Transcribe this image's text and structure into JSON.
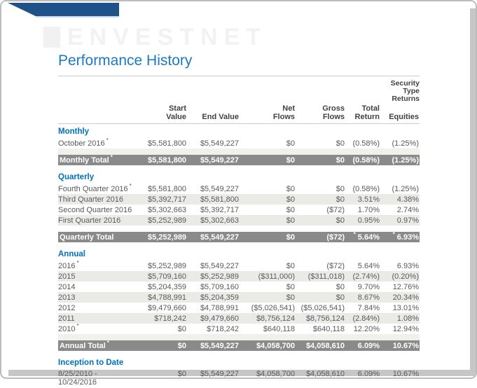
{
  "window": {
    "watermark": "ENVESTNET"
  },
  "page": {
    "title": "Performance History"
  },
  "colors": {
    "banner_navy": "#1F5288",
    "section_heading_blue": "#0071BC",
    "title_blue": "#1B7AC1",
    "total_bar_gray": "#8A8A8A",
    "row_shade": "#EAEAE7",
    "rule_gray": "#CCCCCC",
    "text_gray": "#58595B"
  },
  "table": {
    "security_header": "Security\nType\nReturns",
    "columns": [
      "Start Value",
      "End Value",
      "Net\nFlows",
      "Gross\nFlows",
      "Total\nReturn",
      "Equities"
    ],
    "sections": [
      {
        "heading": "Monthly",
        "rows": [
          {
            "label": "October 2016",
            "star": "*",
            "values": [
              "$5,581,800",
              "$5,549,227",
              "$0",
              "$0",
              "(0.58%)",
              "(1.25%)"
            ]
          }
        ],
        "spacer": true,
        "total": {
          "label": "Monthly Total",
          "star": "*",
          "values": [
            "$5,581,800",
            "$5,549,227",
            "$0",
            "$0",
            "(0.58%)",
            "(1.25%)"
          ]
        }
      },
      {
        "heading": "Quarterly",
        "rows": [
          {
            "label": "Fourth Quarter 2016",
            "star": "*",
            "values": [
              "$5,581,800",
              "$5,549,227",
              "$0",
              "$0",
              "(0.58%)",
              "(1.25%)"
            ]
          },
          {
            "label": "Third Quarter 2016",
            "star": "",
            "values": [
              "$5,392,717",
              "$5,581,800",
              "$0",
              "$0",
              "3.51%",
              "4.38%"
            ]
          },
          {
            "label": "Second Quarter 2016",
            "star": "",
            "values": [
              "$5,302,663",
              "$5,392,717",
              "$0",
              "($72)",
              "1.70%",
              "2.74%"
            ]
          },
          {
            "label": "First Quarter 2016",
            "star": "",
            "values": [
              "$5,252,989",
              "$5,302,663",
              "$0",
              "$0",
              "0.95%",
              "0.97%"
            ]
          }
        ],
        "spacer": true,
        "total": {
          "label": "Quarterly Total",
          "star": "",
          "values": [
            "$5,252,989",
            "$5,549,227",
            "$0",
            "($72)",
            "*5.64%",
            "*6.93%"
          ]
        }
      },
      {
        "heading": "Annual",
        "rows": [
          {
            "label": "2016",
            "star": "*",
            "values": [
              "$5,252,989",
              "$5,549,227",
              "$0",
              "($72)",
              "5.64%",
              "6.93%"
            ]
          },
          {
            "label": "2015",
            "star": "",
            "values": [
              "$5,709,160",
              "$5,252,989",
              "($311,000)",
              "($311,018)",
              "(2.74%)",
              "(0.20%)"
            ]
          },
          {
            "label": "2014",
            "star": "",
            "values": [
              "$5,204,359",
              "$5,709,160",
              "$0",
              "$0",
              "9.70%",
              "12.76%"
            ]
          },
          {
            "label": "2013",
            "star": "",
            "values": [
              "$4,788,991",
              "$5,204,359",
              "$0",
              "$0",
              "8.67%",
              "20.34%"
            ]
          },
          {
            "label": "2012",
            "star": "",
            "values": [
              "$9,479,660",
              "$4,788,991",
              "($5,026,541)",
              "($5,026,541)",
              "7.84%",
              "13.01%"
            ]
          },
          {
            "label": "2011",
            "star": "",
            "values": [
              "$718,242",
              "$9,479,660",
              "$8,756,124",
              "$8,756,124",
              "(2.84%)",
              "1.08%"
            ]
          },
          {
            "label": "2010",
            "star": "*",
            "values": [
              "$0",
              "$718,242",
              "$640,118",
              "$640,118",
              "12.20%",
              "12.94%"
            ]
          }
        ],
        "spacer": true,
        "total": {
          "label": "Annual Total",
          "star": "*",
          "values": [
            "$0",
            "$5,549,227",
            "$4,058,700",
            "$4,058,610",
            "6.09%",
            "10.67%"
          ]
        }
      },
      {
        "heading": "Inception to Date",
        "rows": [
          {
            "label": "8/25/2010 -\n10/24/2016",
            "star": "",
            "multiline": true,
            "values": [
              "$0",
              "$5,549,227",
              "$4,058,700",
              "$4,058,610",
              "6.09%",
              "10.67%"
            ]
          }
        ],
        "spacer": false,
        "total": null
      }
    ]
  }
}
